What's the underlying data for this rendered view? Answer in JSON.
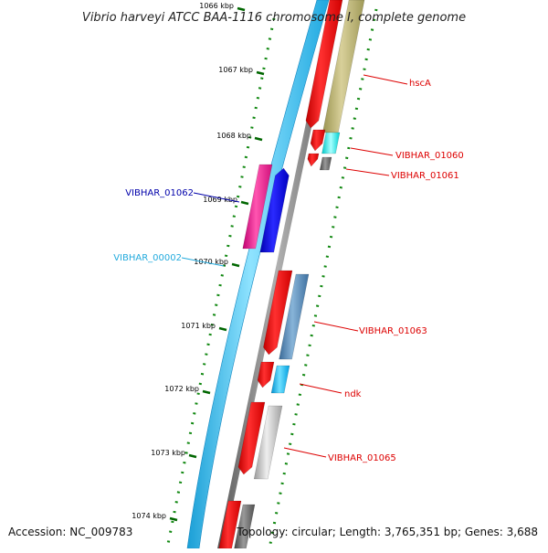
{
  "title": "Vibrio harveyi ATCC BAA-1116 chromosome I, complete genome",
  "footer": {
    "accession": "Accession: NC_009783",
    "stats": "Topology: circular; Length: 3,765,351 bp; Genes: 3,688"
  },
  "ticks": [
    "1066 kbp",
    "1067 kbp",
    "1068 kbp",
    "1069 kbp",
    "1070 kbp",
    "1071 kbp",
    "1072 kbp",
    "1073 kbp",
    "1074 kbp"
  ],
  "gene_labels": [
    {
      "text": "hscA",
      "color": "#dd0000"
    },
    {
      "text": "VIBHAR_01060",
      "color": "#dd0000"
    },
    {
      "text": "VIBHAR_01061",
      "color": "#dd0000"
    },
    {
      "text": "VIBHAR_01062",
      "color": "#0000aa"
    },
    {
      "text": "VIBHAR_00002",
      "color": "#22aadd"
    },
    {
      "text": "VIBHAR_01063",
      "color": "#dd0000"
    },
    {
      "text": "ndk",
      "color": "#dd0000"
    },
    {
      "text": "VIBHAR_01065",
      "color": "#dd0000"
    }
  ],
  "colors": {
    "backbone_cyan": "#33c3f0",
    "backbone_grey": "#777777",
    "cds_red": "#ee0000",
    "trna_khaki": "#b8b070",
    "rrna_cyan": "#00e0e0",
    "gene_blue": "#0000dd",
    "gene_magenta": "#ee1188",
    "gene_steelblue": "#4a7fb0",
    "gene_lightblue": "#00b8f0",
    "gene_lightgrey": "#bbbbbb",
    "gene_darkgrey": "#666666",
    "tick_green": "#006600"
  }
}
